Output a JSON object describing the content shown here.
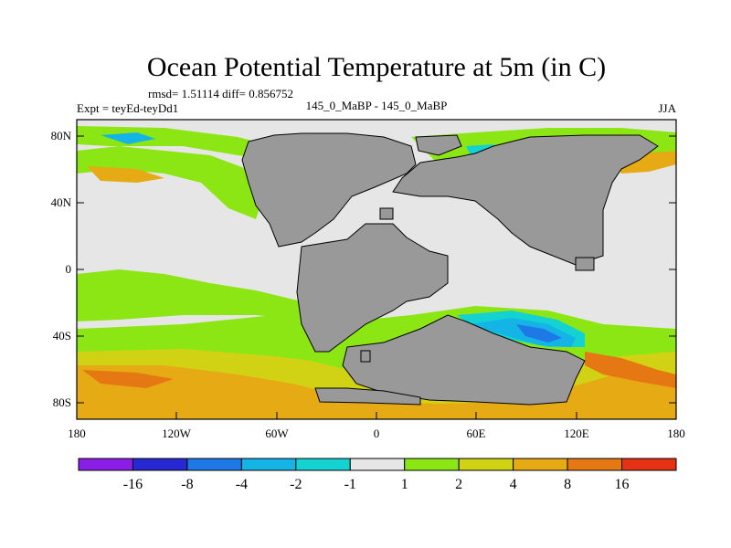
{
  "title": "Ocean Potential Temperature at 5m (in C)",
  "stats": "rmsd= 1.51114 diff= 0.856752",
  "left_label": "Expt = teyEd-teyDd1",
  "center_label": "145_0_MaBP - 145_0_MaBP",
  "right_label": "JJA",
  "lat_ticks": [
    "80N",
    "40N",
    "0",
    "40S",
    "80S"
  ],
  "lon_ticks": [
    "180",
    "120W",
    "60W",
    "0",
    "60E",
    "120E",
    "180"
  ],
  "colorbar": {
    "colors": [
      "#8a1ee6",
      "#2828d2",
      "#1e78e6",
      "#14b4e6",
      "#14d2d2",
      "#e6e6e6",
      "#8ce614",
      "#d2d214",
      "#e6aa14",
      "#e67814",
      "#e63214"
    ],
    "labels": [
      "-16",
      "-8",
      "-4",
      "-2",
      "-1",
      "1",
      "2",
      "4",
      "8",
      "16"
    ]
  },
  "colors": {
    "land": "#999999",
    "neutral": "#e6e6e6",
    "green": "#8ce614",
    "yellow": "#d2d214",
    "orange": "#e6aa14",
    "dark_orange": "#e67814",
    "red": "#e63214",
    "cyan": "#14d2d2",
    "light_blue": "#14b4e6",
    "blue": "#1e78e6"
  }
}
